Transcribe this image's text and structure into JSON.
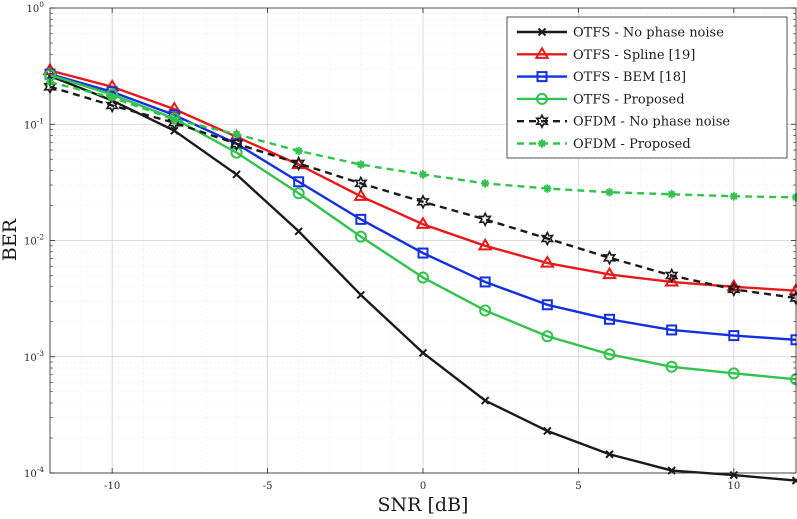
{
  "chart_data": {
    "type": "line",
    "xlabel": "SNR [dB]",
    "ylabel": "BER",
    "xlim": [
      -12,
      12
    ],
    "ylim": [
      0.0001,
      1
    ],
    "yscale": "log",
    "grid": true,
    "legend_position": "top-right",
    "x_ticks": [
      -10,
      -5,
      0,
      5,
      10
    ],
    "x_tick_labels": [
      "-10",
      "-5",
      "0",
      "5",
      "10"
    ],
    "y_ticks": [
      0.0001,
      0.001,
      0.01,
      0.1,
      1
    ],
    "y_tick_labels": [
      {
        "base": "10",
        "exp": "-4"
      },
      {
        "base": "10",
        "exp": "-3"
      },
      {
        "base": "10",
        "exp": "-2"
      },
      {
        "base": "10",
        "exp": "-1"
      },
      {
        "base": "10",
        "exp": "0"
      }
    ],
    "x": [
      -12,
      -10,
      -8,
      -6,
      -4,
      -2,
      0,
      2,
      4,
      6,
      8,
      10,
      12
    ],
    "series": [
      {
        "name": "OTFS - No phase noise",
        "color": "#1a1a1a",
        "dash": "solid",
        "marker": "x",
        "values": [
          0.26,
          0.16,
          0.088,
          0.037,
          0.012,
          0.0034,
          0.00108,
          0.00042,
          0.00023,
          0.000145,
          0.000105,
          9.6e-05,
          8.6e-05
        ]
      },
      {
        "name": "OTFS - Spline [19]",
        "color": "#e8191b",
        "dash": "solid",
        "marker": "triangle",
        "values": [
          0.29,
          0.21,
          0.135,
          0.078,
          0.045,
          0.024,
          0.0138,
          0.009,
          0.0064,
          0.0051,
          0.0044,
          0.004,
          0.0037
        ]
      },
      {
        "name": "OTFS - BEM [18]",
        "color": "#1330e0",
        "dash": "solid",
        "marker": "square",
        "values": [
          0.27,
          0.19,
          0.12,
          0.068,
          0.032,
          0.0152,
          0.0078,
          0.0044,
          0.0028,
          0.0021,
          0.0017,
          0.00152,
          0.0014
        ]
      },
      {
        "name": "OTFS - Proposed",
        "color": "#33c24d",
        "dash": "solid",
        "marker": "circle",
        "values": [
          0.265,
          0.18,
          0.112,
          0.057,
          0.0255,
          0.0108,
          0.0048,
          0.0025,
          0.0015,
          0.00105,
          0.00082,
          0.00072,
          0.00064
        ]
      },
      {
        "name": "OFDM - No phase noise",
        "color": "#1a1a1a",
        "dash": "dashed",
        "marker": "hexagram",
        "values": [
          0.21,
          0.145,
          0.103,
          0.068,
          0.046,
          0.031,
          0.0215,
          0.0152,
          0.0104,
          0.0071,
          0.005,
          0.0038,
          0.0032
        ]
      },
      {
        "name": "OFDM - Proposed",
        "color": "#33c24d",
        "dash": "dashed",
        "marker": "asterisk",
        "values": [
          0.23,
          0.17,
          0.11,
          0.082,
          0.059,
          0.045,
          0.037,
          0.031,
          0.028,
          0.026,
          0.025,
          0.024,
          0.0235
        ]
      }
    ]
  }
}
